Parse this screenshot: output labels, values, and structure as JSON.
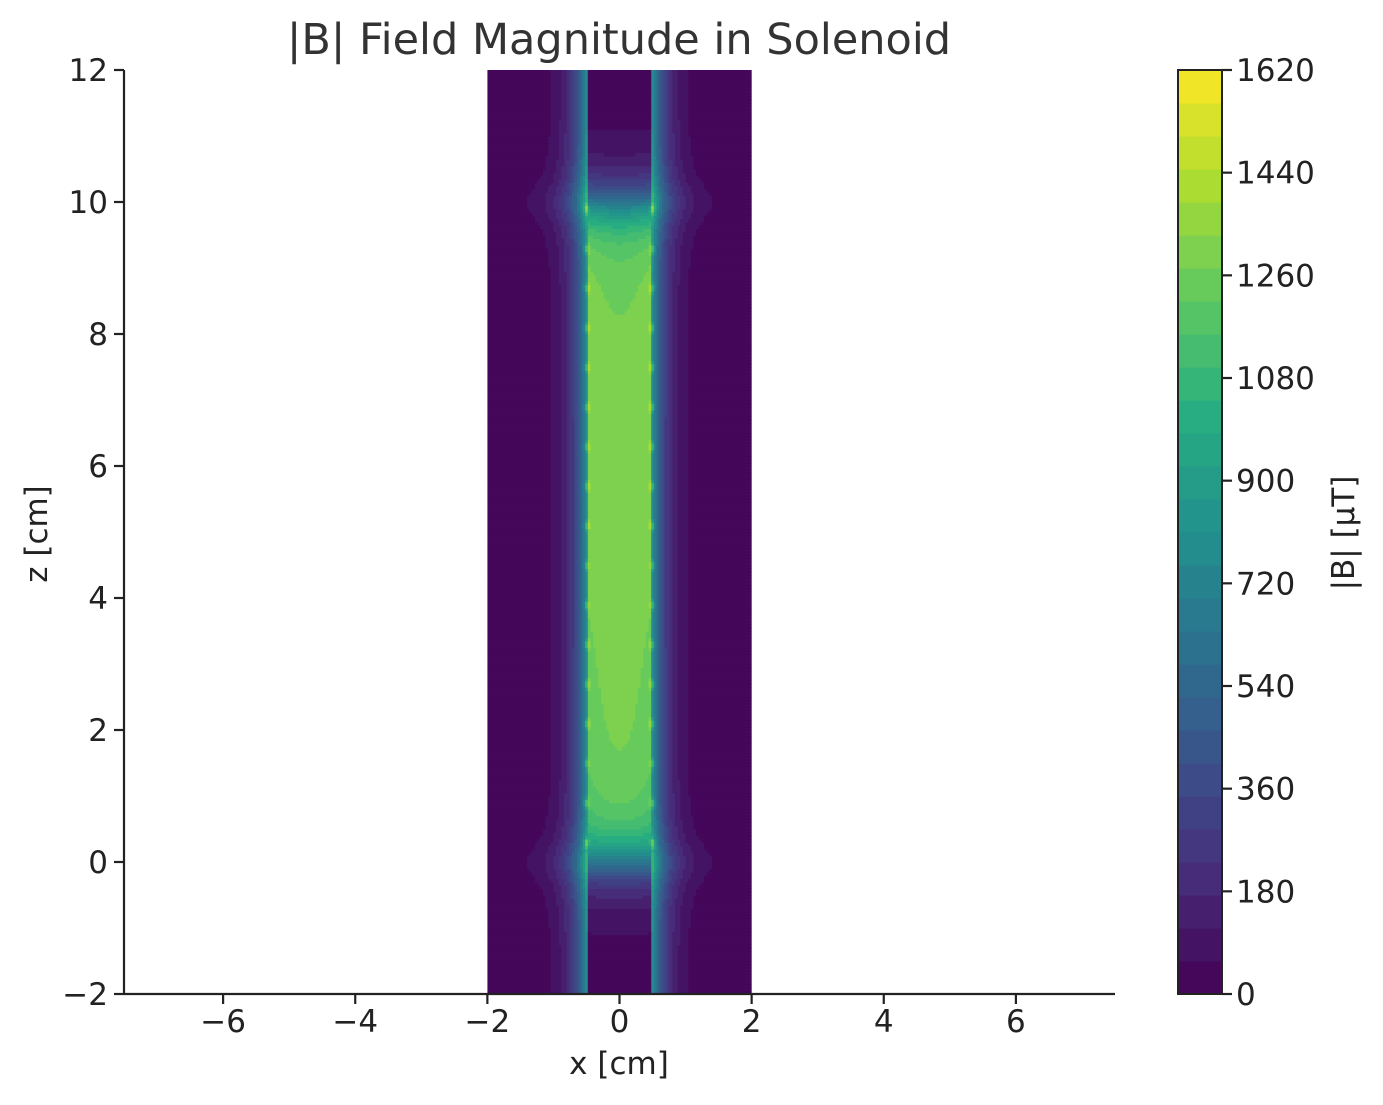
{
  "chart_data": {
    "type": "heatmap",
    "title": "|B| Field Magnitude in Solenoid",
    "xlabel": "x [cm]",
    "ylabel": "z [cm]",
    "xlim": [
      -7.5,
      7.5
    ],
    "ylim": [
      -2,
      12
    ],
    "xticks": [
      -6,
      -4,
      -2,
      0,
      2,
      4,
      6
    ],
    "yticks": [
      -2,
      0,
      2,
      4,
      6,
      8,
      10,
      12
    ],
    "xtick_labels": [
      "−6",
      "−4",
      "−2",
      "0",
      "2",
      "4",
      "6"
    ],
    "ytick_labels": [
      "−2",
      "0",
      "2",
      "4",
      "6",
      "8",
      "10",
      "12"
    ],
    "field_domain": {
      "x": [
        -2,
        2
      ],
      "z": [
        -2,
        12
      ]
    },
    "solenoid": {
      "radius_cm": 0.5,
      "z_start_cm": 0,
      "z_end_cm": 10,
      "interior_peak_uT": 1300
    },
    "colorbar": {
      "label": "|B| [μT]",
      "min": 0,
      "max": 1620,
      "levels": 28,
      "ticks": [
        0,
        180,
        360,
        540,
        720,
        900,
        1080,
        1260,
        1440,
        1620
      ],
      "tick_labels": [
        "0",
        "180",
        "360",
        "540",
        "720",
        "900",
        "1080",
        "1260",
        "1440",
        "1620"
      ],
      "colormap": "viridis"
    },
    "grid": false,
    "legend": "none",
    "colors": {
      "background_field": "#440154",
      "axis": "#222222",
      "text": "#222222",
      "title": "#333333"
    }
  }
}
